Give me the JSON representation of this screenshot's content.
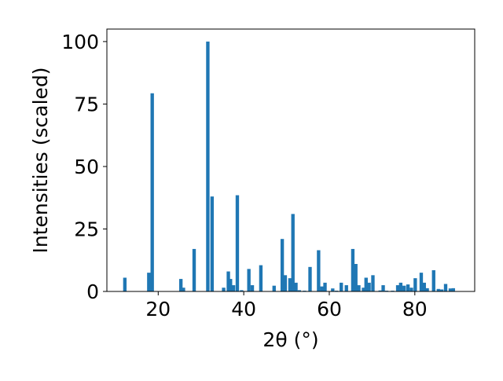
{
  "chart_data": {
    "type": "bar",
    "xlabel": "2θ (°)",
    "ylabel": "Intensities (scaled)",
    "xlim": [
      8,
      94
    ],
    "ylim": [
      0,
      105
    ],
    "xticks": [
      20,
      40,
      60,
      80
    ],
    "yticks": [
      0,
      25,
      50,
      75,
      100
    ],
    "bar_width": 0.8,
    "bar_color": "#1f77b4",
    "grid": false,
    "x": [
      12.2,
      17.8,
      18.6,
      25.3,
      25.9,
      28.4,
      31.6,
      32.6,
      35.3,
      36.4,
      36.9,
      37.6,
      38.5,
      39.5,
      41.2,
      42.0,
      44.0,
      47.1,
      49.0,
      49.7,
      50.8,
      51.5,
      52.2,
      53.0,
      54.2,
      55.5,
      57.5,
      58.3,
      59.0,
      60.8,
      61.7,
      62.8,
      64.0,
      65.5,
      66.2,
      66.9,
      68.0,
      68.6,
      69.3,
      70.2,
      71.9,
      72.6,
      73.4,
      74.8,
      76.0,
      76.7,
      77.5,
      78.4,
      79.2,
      80.1,
      81.5,
      82.2,
      82.9,
      84.4,
      85.5,
      86.3,
      87.2,
      88.3,
      89.0
    ],
    "values": [
      5.5,
      7.5,
      79.3,
      5,
      1.5,
      17,
      100,
      38,
      1.5,
      8,
      5,
      2.5,
      38.5,
      0.5,
      9,
      2.5,
      10.5,
      2.3,
      21,
      6.5,
      5.3,
      31,
      3.5,
      0.5,
      0.3,
      9.8,
      16.5,
      2,
      3.5,
      1.2,
      0.3,
      3.5,
      2.5,
      17,
      11,
      2.5,
      1.5,
      5.5,
      3.5,
      6.5,
      0.4,
      2.5,
      0.3,
      0.3,
      2.5,
      3.5,
      2.3,
      2.8,
      1.5,
      5.3,
      7.5,
      3.5,
      1.3,
      8.5,
      1,
      0.8,
      3,
      1.2,
      1.3
    ]
  }
}
